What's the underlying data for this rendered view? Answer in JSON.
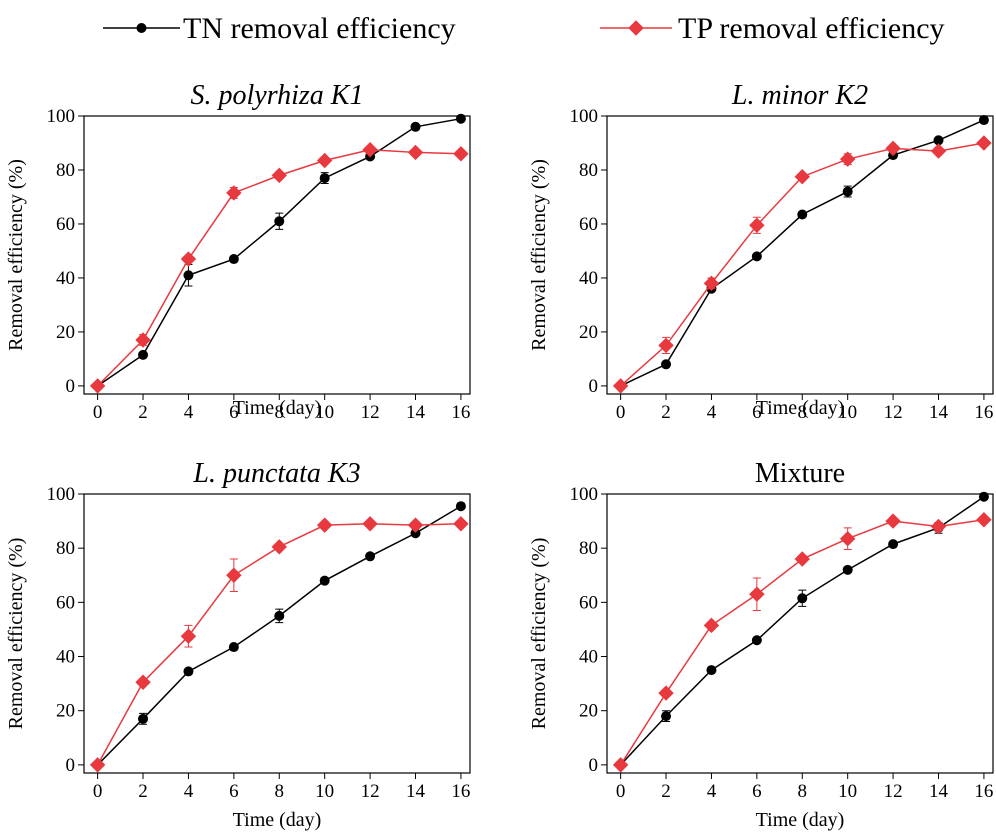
{
  "legend": [
    {
      "name": "TN removal efficiency",
      "color": "#000000",
      "marker": "circle"
    },
    {
      "name": "TP removal efficiency",
      "color": "#e8393f",
      "marker": "diamond"
    }
  ],
  "chart_data": [
    {
      "type": "line",
      "title": "S. polyrhiza K1",
      "xlabel": "Time (day)",
      "ylabel": "Removal efficiency (%)",
      "x": [
        0,
        2,
        4,
        6,
        8,
        10,
        12,
        14,
        16
      ],
      "series": [
        {
          "values": [
            0,
            11.5,
            41,
            47,
            61,
            77,
            85,
            96,
            99
          ],
          "errors": [
            null,
            null,
            4,
            null,
            3,
            2,
            null,
            null,
            null
          ]
        },
        {
          "values": [
            0,
            17,
            47,
            71.5,
            78,
            83.5,
            87.5,
            86.5,
            86
          ],
          "errors": [
            null,
            2,
            null,
            2,
            null,
            null,
            null,
            null,
            null
          ]
        }
      ],
      "xlim": [
        -0.6,
        16.4
      ],
      "ylim": [
        -3,
        100
      ],
      "xticks": [
        0,
        2,
        4,
        6,
        8,
        10,
        12,
        14,
        16
      ],
      "yticks": [
        0,
        20,
        40,
        60,
        80,
        100
      ]
    },
    {
      "type": "line",
      "title": "L. minor K2",
      "xlabel": "Time (day)",
      "ylabel": "Removal efficiency (%)",
      "x": [
        0,
        2,
        4,
        6,
        8,
        10,
        12,
        14,
        16
      ],
      "series": [
        {
          "values": [
            0,
            8,
            36,
            48,
            63.5,
            72,
            85.5,
            91,
            98.5
          ],
          "errors": [
            null,
            null,
            null,
            null,
            null,
            2,
            null,
            null,
            null
          ]
        },
        {
          "values": [
            0,
            15,
            38,
            59.5,
            77.5,
            84,
            88,
            87,
            90
          ],
          "errors": [
            null,
            3,
            2,
            3,
            null,
            2,
            null,
            null,
            null
          ]
        }
      ],
      "xlim": [
        -0.6,
        16.4
      ],
      "ylim": [
        -3,
        100
      ],
      "xticks": [
        0,
        2,
        4,
        6,
        8,
        10,
        12,
        14,
        16
      ],
      "yticks": [
        0,
        20,
        40,
        60,
        80,
        100
      ]
    },
    {
      "type": "line",
      "title": "L. punctata K3",
      "xlabel": "Time (day)",
      "ylabel": "Removal efficiency (%)",
      "x": [
        0,
        2,
        4,
        6,
        8,
        10,
        12,
        14,
        16
      ],
      "series": [
        {
          "values": [
            0,
            17,
            34.5,
            43.5,
            55,
            68,
            77,
            85.5,
            95.5
          ],
          "errors": [
            null,
            2,
            null,
            null,
            2.5,
            null,
            null,
            null,
            null
          ]
        },
        {
          "values": [
            0,
            30.5,
            47.5,
            70,
            80.5,
            88.5,
            89,
            88.5,
            89
          ],
          "errors": [
            null,
            null,
            4,
            6,
            null,
            null,
            null,
            null,
            null
          ]
        }
      ],
      "xlim": [
        -0.6,
        16.4
      ],
      "ylim": [
        -3,
        100
      ],
      "xticks": [
        0,
        2,
        4,
        6,
        8,
        10,
        12,
        14,
        16
      ],
      "yticks": [
        0,
        20,
        40,
        60,
        80,
        100
      ]
    },
    {
      "type": "line",
      "title": "Mixture",
      "xlabel": "Time (day)",
      "ylabel": "Removal efficiency (%)",
      "x": [
        0,
        2,
        4,
        6,
        8,
        10,
        12,
        14,
        16
      ],
      "series": [
        {
          "values": [
            0,
            18,
            35,
            46,
            61.5,
            72,
            81.5,
            87.5,
            99
          ],
          "errors": [
            null,
            2,
            null,
            null,
            3,
            null,
            null,
            2,
            null
          ]
        },
        {
          "values": [
            0,
            26.5,
            51.5,
            63,
            76,
            83.5,
            90,
            88,
            90.5
          ],
          "errors": [
            null,
            null,
            null,
            6,
            null,
            4,
            null,
            null,
            null
          ]
        }
      ],
      "xlim": [
        -0.6,
        16.4
      ],
      "ylim": [
        -3,
        100
      ],
      "xticks": [
        0,
        2,
        4,
        6,
        8,
        10,
        12,
        14,
        16
      ],
      "yticks": [
        0,
        20,
        40,
        60,
        80,
        100
      ]
    }
  ]
}
